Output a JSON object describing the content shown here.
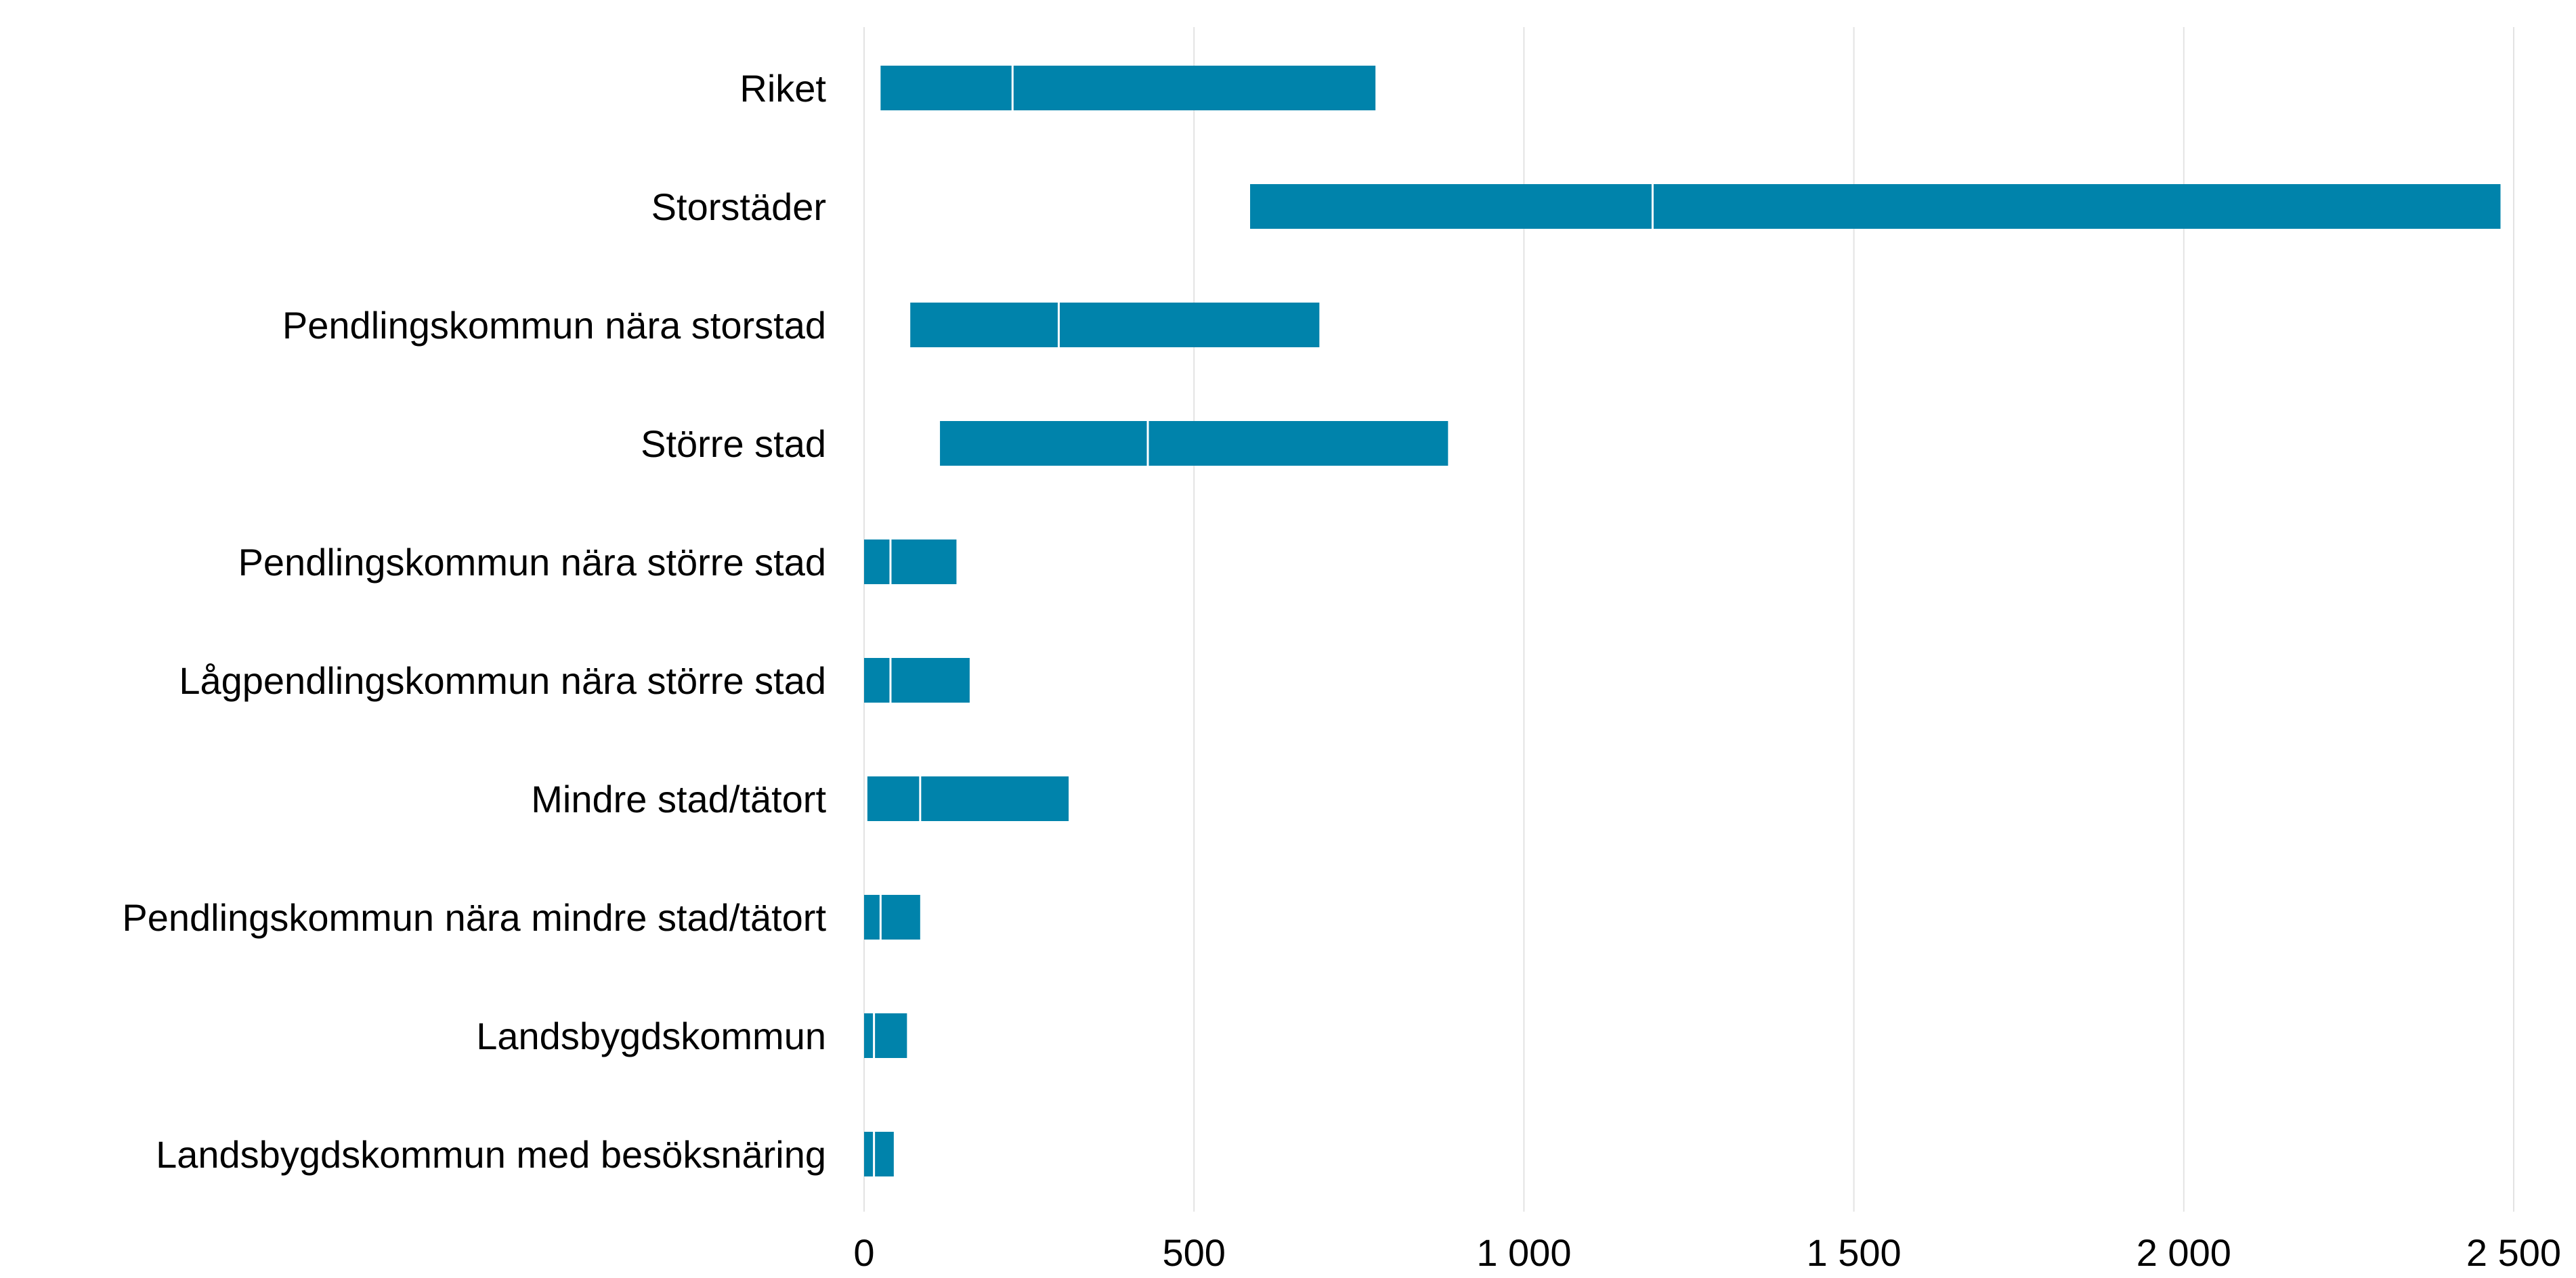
{
  "chart_data": {
    "type": "bar",
    "subtype": "horizontal-range",
    "title": "",
    "xlabel": "",
    "ylabel": "",
    "xlim": [
      0,
      2500
    ],
    "grid": true,
    "bar_color": "#0083ab",
    "marker_color": "#ffffff",
    "categories": [
      "Riket",
      "Storstäder",
      "Pendlingskommun nära storstad",
      "Större stad",
      "Pendlingskommun nära större stad",
      "Lågpendlingskommun nära större stad",
      "Mindre stad/tätort",
      "Pendlingskommun nära mindre stad/tätort",
      "Landsbygdskommun",
      "Landsbygdskommun med besöksnäring"
    ],
    "ranges": [
      {
        "min": 25,
        "mid": 225,
        "max": 775
      },
      {
        "min": 585,
        "mid": 1195,
        "max": 2480
      },
      {
        "min": 70,
        "mid": 295,
        "max": 690
      },
      {
        "min": 115,
        "mid": 430,
        "max": 885
      },
      {
        "min": 0,
        "mid": 40,
        "max": 140
      },
      {
        "min": 0,
        "mid": 40,
        "max": 160
      },
      {
        "min": 5,
        "mid": 85,
        "max": 310
      },
      {
        "min": 0,
        "mid": 25,
        "max": 85
      },
      {
        "min": 0,
        "mid": 15,
        "max": 65
      },
      {
        "min": 0,
        "mid": 15,
        "max": 45
      }
    ],
    "x_ticks": [
      {
        "value": 0,
        "label": "0"
      },
      {
        "value": 500,
        "label": "500"
      },
      {
        "value": 1000,
        "label": "1 000"
      },
      {
        "value": 1500,
        "label": "1 500"
      },
      {
        "value": 2000,
        "label": "2 000"
      },
      {
        "value": 2500,
        "label": "2 500"
      }
    ]
  }
}
